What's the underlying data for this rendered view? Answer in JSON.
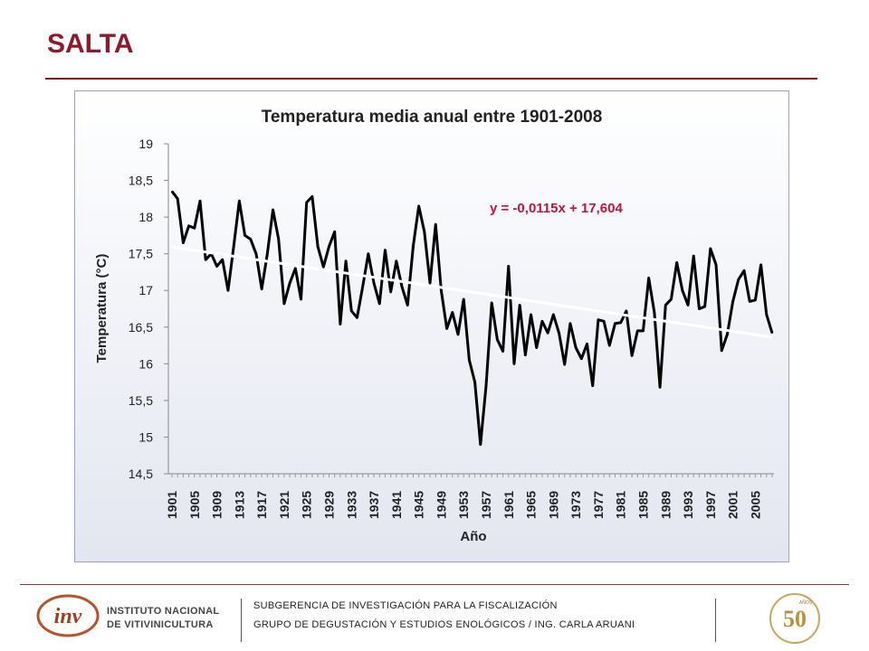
{
  "slide": {
    "title": "SALTA"
  },
  "chart_data": {
    "type": "line",
    "title": "Temperatura media anual entre 1901-2008",
    "xlabel": "Año",
    "ylabel": "Temperatura  (°C)",
    "ylim": [
      14.5,
      19
    ],
    "yticks": [
      "14,5",
      "15",
      "15,5",
      "16",
      "16,5",
      "17",
      "17,5",
      "18",
      "18,5",
      "19"
    ],
    "xticks": [
      "1901",
      "1905",
      "1909",
      "1913",
      "1917",
      "1921",
      "1925",
      "1929",
      "1933",
      "1937",
      "1941",
      "1945",
      "1949",
      "1953",
      "1957",
      "1961",
      "1965",
      "1969",
      "1973",
      "1977",
      "1981",
      "1985",
      "1989",
      "1993",
      "1997",
      "2001",
      "2005"
    ],
    "grid": false,
    "legend": "none",
    "series": [
      {
        "x_start": 1901,
        "x_end": 2008,
        "color": "#000000",
        "values": [
          18.35,
          18.25,
          17.65,
          17.88,
          17.85,
          18.22,
          17.42,
          17.5,
          17.33,
          17.42,
          17.0,
          17.6,
          18.22,
          17.75,
          17.7,
          17.5,
          17.02,
          17.5,
          18.1,
          17.7,
          16.82,
          17.1,
          17.3,
          16.88,
          18.2,
          18.28,
          17.6,
          17.32,
          17.6,
          17.8,
          16.54,
          17.4,
          16.72,
          16.63,
          17.05,
          17.5,
          17.1,
          16.82,
          17.55,
          16.98,
          17.4,
          17.05,
          16.8,
          17.6,
          18.15,
          17.8,
          17.1,
          17.9,
          17.0,
          16.48,
          16.7,
          16.4,
          16.88,
          16.05,
          15.75,
          14.9,
          15.7,
          16.83,
          16.33,
          16.17,
          17.33,
          16.0,
          16.8,
          16.12,
          16.67,
          16.22,
          16.58,
          16.42,
          16.67,
          16.42,
          15.99,
          16.55,
          16.22,
          16.07,
          16.27,
          15.7,
          16.6,
          16.58,
          16.25,
          16.55,
          16.56,
          16.72,
          16.11,
          16.45,
          16.45,
          17.17,
          16.7,
          15.68,
          16.8,
          16.88,
          17.38,
          17.0,
          16.8,
          17.47,
          16.75,
          16.78,
          17.57,
          17.35,
          16.18,
          16.4,
          16.85,
          17.15,
          17.27,
          16.85,
          16.87,
          17.35,
          16.67,
          16.42
        ]
      }
    ],
    "trendline": {
      "equation": "y = -0,0115x + 17,604",
      "slope": -0.0115,
      "intercept": 17.604,
      "color": "#ffffff",
      "label_color": "#c0143c"
    }
  },
  "footer": {
    "line1": "SUBGERENCIA DE INVESTIGACIÓN PARA LA FISCALIZACIÓN",
    "line2": "GRUPO DE DEGUSTACIÓN Y ESTUDIOS ENOLÓGICOS / ING. CARLA ARUANI",
    "org_line1": "INSTITUTO NACIONAL",
    "org_line2": "DE VITIVINICULTURA",
    "logo_text": "inv",
    "anniv_number": "50",
    "anniv_caption": "AÑOS"
  }
}
